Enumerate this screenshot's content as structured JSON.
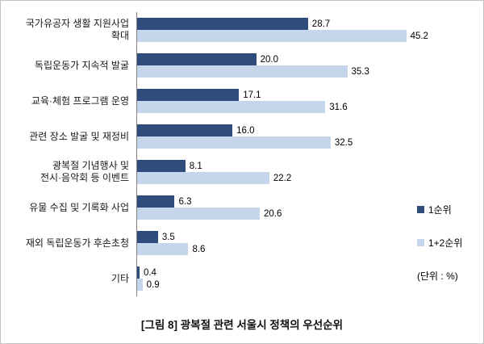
{
  "chart_data": {
    "type": "bar",
    "orientation": "horizontal",
    "title": "",
    "xlabel": "",
    "ylabel": "",
    "xlim": [
      0,
      50
    ],
    "grid": false,
    "legend_position": "right",
    "unit_label": "(단위 : %)",
    "categories": [
      "국가유공자 생활 지원사업 확대",
      "독립운동가 지속적 발굴",
      "교육·체험 프로그램 운영",
      "관련 장소 발굴 및 재정비",
      "광복절 기념행사 및\n전시·음악회 등 이벤트",
      "유물 수집 및 기록화 사업",
      "재외 독립운동가 후손초청",
      "기타"
    ],
    "series": [
      {
        "name": "1순위",
        "color": "#2e4d7c",
        "values": [
          28.7,
          20.0,
          17.1,
          16.0,
          8.1,
          6.3,
          3.5,
          0.4
        ]
      },
      {
        "name": "1+2순위",
        "color": "#c5d5ea",
        "values": [
          45.2,
          35.3,
          31.6,
          32.5,
          22.2,
          20.6,
          8.6,
          0.9
        ]
      }
    ]
  },
  "caption": "[그림 8] 광복절 관련 서울시 정책의 우선순위"
}
